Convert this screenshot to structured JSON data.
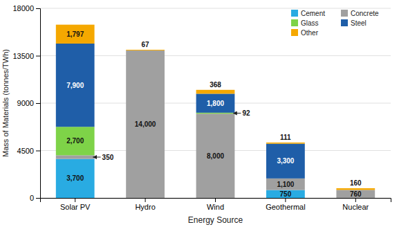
{
  "chart_data": {
    "type": "bar",
    "stacked": true,
    "categories": [
      "Solar PV",
      "Hydro",
      "Wind",
      "Geothermal",
      "Nuclear"
    ],
    "series": [
      {
        "name": "Cement",
        "color": "#29ABE2",
        "values": [
          3700,
          0,
          0,
          750,
          0
        ],
        "value_labels": [
          "3,700",
          null,
          null,
          "750",
          null
        ]
      },
      {
        "name": "Concrete",
        "color": "#A0A0A0",
        "values": [
          350,
          14000,
          8000,
          1100,
          760
        ],
        "value_labels": [
          "350",
          "14,000",
          "8,000",
          "1,100",
          "760"
        ]
      },
      {
        "name": "Glass",
        "color": "#7ED348",
        "values": [
          2700,
          0,
          92,
          0,
          0
        ],
        "value_labels": [
          "2,700",
          null,
          "92",
          null,
          null
        ]
      },
      {
        "name": "Steel",
        "color": "#1F5EA8",
        "values": [
          7900,
          0,
          1800,
          3300,
          0
        ],
        "value_labels": [
          "7,900",
          null,
          "1,800",
          "3,300",
          null
        ]
      },
      {
        "name": "Other",
        "color": "#F5A800",
        "values": [
          1797,
          67,
          368,
          111,
          160
        ],
        "value_labels": [
          "1,797",
          "67",
          "368",
          "111",
          "160"
        ]
      }
    ],
    "xlabel": "Energy Source",
    "ylabel": "Mass of Materials (tonnes/TWh)",
    "ylim": [
      0,
      18000
    ],
    "yticks": [
      0,
      4500,
      9000,
      13500,
      18000
    ],
    "grid": true,
    "legend": "upper right",
    "data_labels": true
  }
}
